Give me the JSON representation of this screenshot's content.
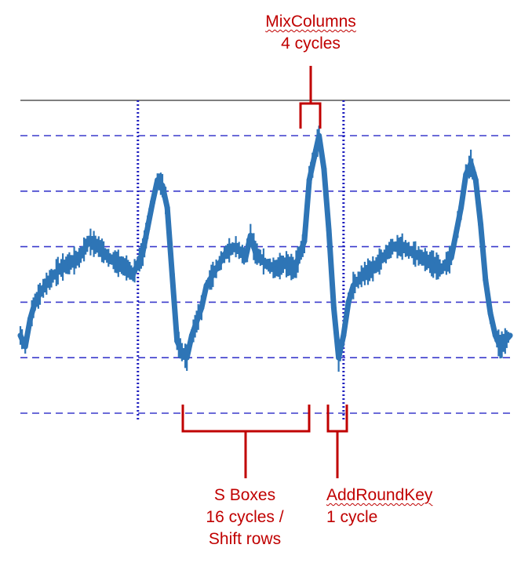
{
  "chart_data": {
    "type": "line",
    "title": "",
    "xlabel": "",
    "ylabel": "",
    "xlim": [
      0,
      100
    ],
    "ylim": [
      0,
      6
    ],
    "grid": {
      "horizontal_dashed": true,
      "vertical_dotted_markers": [
        24,
        66
      ]
    },
    "series": [
      {
        "color": "#2e75b6",
        "x": [
          0,
          1,
          2,
          3,
          5,
          8,
          10,
          12,
          14,
          16,
          18,
          20,
          22,
          23,
          25,
          27,
          28,
          29,
          30,
          31,
          32,
          33,
          34,
          35,
          37,
          38,
          40,
          42,
          44,
          46,
          47,
          48,
          50,
          52,
          54,
          56,
          58,
          59,
          60,
          61,
          62,
          63,
          64,
          65,
          66,
          67,
          68,
          70,
          72,
          74,
          76,
          78,
          80,
          82,
          84,
          86,
          88,
          90,
          91,
          92,
          93,
          94,
          95,
          96,
          97,
          98,
          99,
          100
        ],
        "values": [
          1.4,
          1.2,
          1.7,
          2.0,
          2.3,
          2.6,
          2.7,
          2.8,
          3.1,
          3.0,
          2.8,
          2.7,
          2.6,
          2.5,
          2.9,
          3.8,
          4.2,
          4.1,
          3.7,
          2.5,
          1.3,
          1.1,
          1.0,
          1.4,
          1.9,
          2.3,
          2.6,
          2.9,
          3.0,
          2.8,
          3.2,
          2.9,
          2.7,
          2.6,
          2.7,
          2.6,
          3.1,
          4.2,
          4.6,
          5.0,
          4.4,
          3.3,
          1.9,
          1.0,
          1.4,
          2.0,
          2.3,
          2.5,
          2.6,
          2.8,
          3.0,
          3.0,
          2.9,
          2.8,
          2.7,
          2.6,
          2.8,
          3.7,
          4.3,
          4.5,
          4.2,
          3.4,
          2.4,
          1.8,
          1.4,
          1.2,
          1.3,
          1.4
        ]
      }
    ],
    "annotations": [
      {
        "id": "mixcolumns",
        "lines": [
          "MixColumns",
          "4 cycles"
        ],
        "x_range": [
          59.5,
          62
        ]
      },
      {
        "id": "sboxes",
        "lines": [
          "S Boxes",
          "16 cycles /",
          "Shift rows"
        ],
        "x_range": [
          33,
          59.5
        ]
      },
      {
        "id": "addroundkey",
        "lines": [
          "AddRoundKey",
          "1 cycle"
        ],
        "x_range": [
          63,
          66
        ]
      }
    ]
  }
}
